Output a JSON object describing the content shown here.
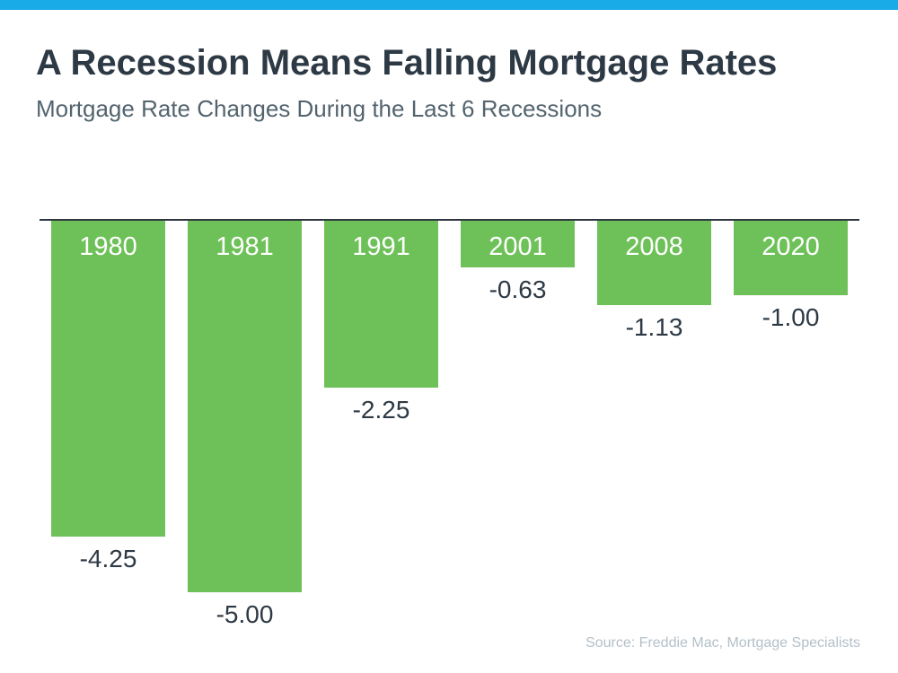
{
  "page": {
    "title": "A Recession Means Falling Mortgage Rates",
    "subtitle": "Mortgage Rate Changes During the Last 6 Recessions",
    "source": "Source: Freddie Mac, Mortgage Specialists",
    "accent_color": "#18abe8"
  },
  "chart_data": {
    "type": "bar",
    "title": "A Recession Means Falling Mortgage Rates",
    "subtitle": "Mortgage Rate Changes During the Last 6 Recessions",
    "categories": [
      "1980",
      "1981",
      "1991",
      "2001",
      "2008",
      "2020"
    ],
    "values": [
      -4.25,
      -5.0,
      -2.25,
      -0.63,
      -1.13,
      -1.0
    ],
    "value_labels": [
      "-4.25",
      "-5.00",
      "-2.25",
      "-0.63",
      "-1.13",
      "-1.00"
    ],
    "xlabel": "",
    "ylabel": "",
    "ylim": [
      -5.5,
      0
    ],
    "grid": false,
    "legend": false,
    "bar_color": "#6ec159",
    "baseline_color": "#2e3640",
    "inside_label_color": "#ffffff",
    "outside_label_color": "#2d3944",
    "annotation": "Year labels shown inside bar tops; rate-change values shown below each bar",
    "source": "Source: Freddie Mac, Mortgage Specialists"
  }
}
